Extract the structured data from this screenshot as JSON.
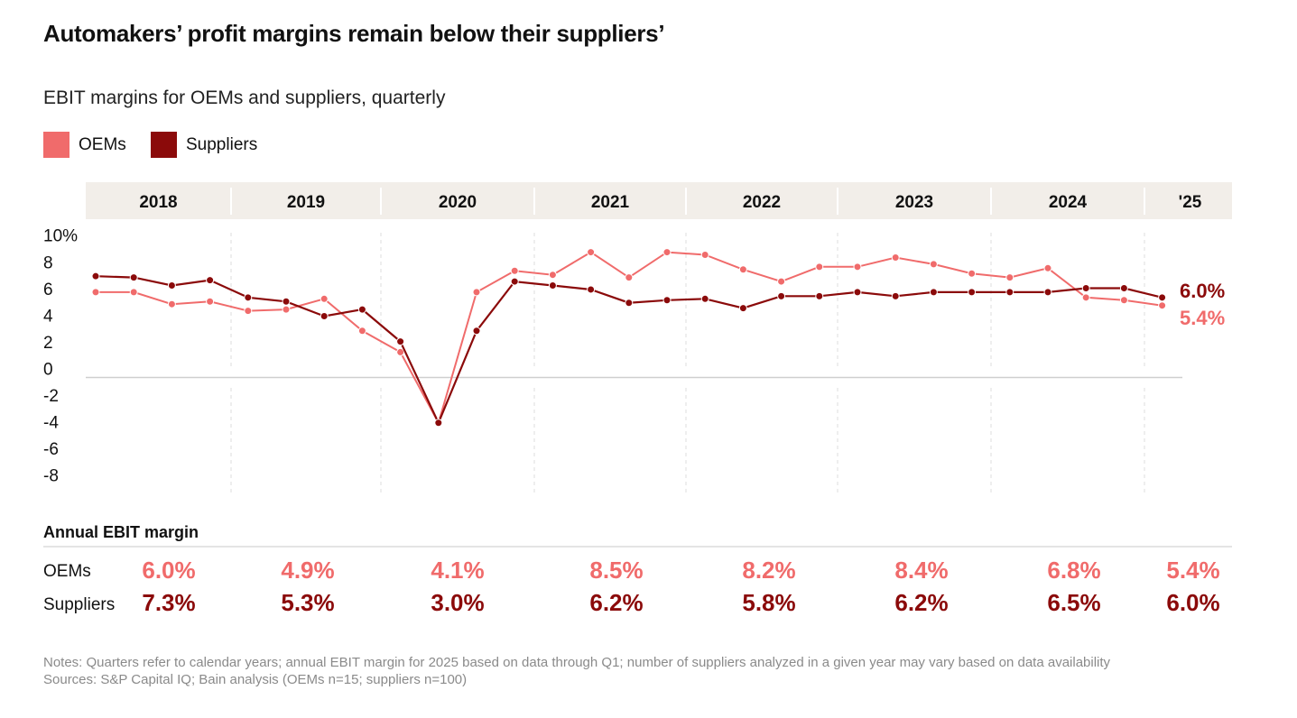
{
  "title": "Automakers’ profit margins remain below their suppliers’",
  "subtitle": "EBIT margins for OEMs and suppliers, quarterly",
  "colors": {
    "oems": "#f06b6b",
    "suppliers": "#8b0a0a",
    "header_band": "#f2eee9"
  },
  "chart_data": {
    "type": "line",
    "title": "Automakers’ profit margins remain below their suppliers’",
    "subtitle": "EBIT margins for OEMs and suppliers, quarterly",
    "legend": "top-left",
    "year_labels": [
      "2018",
      "2019",
      "2020",
      "2021",
      "2022",
      "2023",
      "2024",
      "'25"
    ],
    "x": [
      "2018 Q1",
      "2018 Q2",
      "2018 Q3",
      "2018 Q4",
      "2019 Q1",
      "2019 Q2",
      "2019 Q3",
      "2019 Q4",
      "2020 Q1",
      "2020 Q2",
      "2020 Q3",
      "2020 Q4",
      "2021 Q1",
      "2021 Q2",
      "2021 Q3",
      "2021 Q4",
      "2022 Q1",
      "2022 Q2",
      "2022 Q3",
      "2022 Q4",
      "2023 Q1",
      "2023 Q2",
      "2023 Q3",
      "2023 Q4",
      "2024 Q1",
      "2024 Q2",
      "2024 Q3",
      "2024 Q4",
      "2025 Q1"
    ],
    "y_ticks": [
      10,
      8,
      6,
      4,
      2,
      0,
      -2,
      -4,
      -6,
      -8
    ],
    "y_tick_labels": [
      "10%",
      "8",
      "6",
      "4",
      "2",
      "0",
      "-2",
      "-4",
      "-6",
      "-8"
    ],
    "ylim": [
      -9,
      10.5
    ],
    "grid": false,
    "series": [
      {
        "name": "OEMs",
        "values": [
          6.4,
          6.4,
          5.5,
          5.7,
          5.0,
          5.1,
          5.9,
          3.5,
          1.9,
          -3.4,
          6.4,
          8.0,
          7.7,
          9.4,
          7.5,
          9.4,
          9.2,
          8.1,
          7.2,
          8.3,
          8.3,
          9.0,
          8.5,
          7.8,
          7.5,
          8.2,
          6.0,
          5.8,
          5.4
        ],
        "end_label": "5.4%"
      },
      {
        "name": "Suppliers",
        "values": [
          7.6,
          7.5,
          6.9,
          7.3,
          6.0,
          5.7,
          4.6,
          5.1,
          2.7,
          -3.4,
          3.5,
          7.2,
          6.9,
          6.6,
          5.6,
          5.8,
          5.9,
          5.2,
          6.1,
          6.1,
          6.4,
          6.1,
          6.4,
          6.4,
          6.4,
          6.4,
          6.7,
          6.7,
          6.0
        ],
        "end_label": "6.0%"
      }
    ]
  },
  "annual": {
    "heading": "Annual EBIT margin",
    "rows": [
      {
        "label": "OEMs",
        "values": [
          "6.0%",
          "4.9%",
          "4.1%",
          "8.5%",
          "8.2%",
          "8.4%",
          "6.8%",
          "5.4%"
        ]
      },
      {
        "label": "Suppliers",
        "values": [
          "7.3%",
          "5.3%",
          "3.0%",
          "6.2%",
          "5.8%",
          "6.2%",
          "6.5%",
          "6.0%"
        ]
      }
    ]
  },
  "notes": "Notes: Quarters refer to calendar years; annual EBIT margin for 2025 based on data through Q1; number of suppliers analyzed in a given year may vary based on data availability",
  "sources": "Sources: S&P Capital IQ; Bain analysis (OEMs n=15; suppliers n=100)"
}
